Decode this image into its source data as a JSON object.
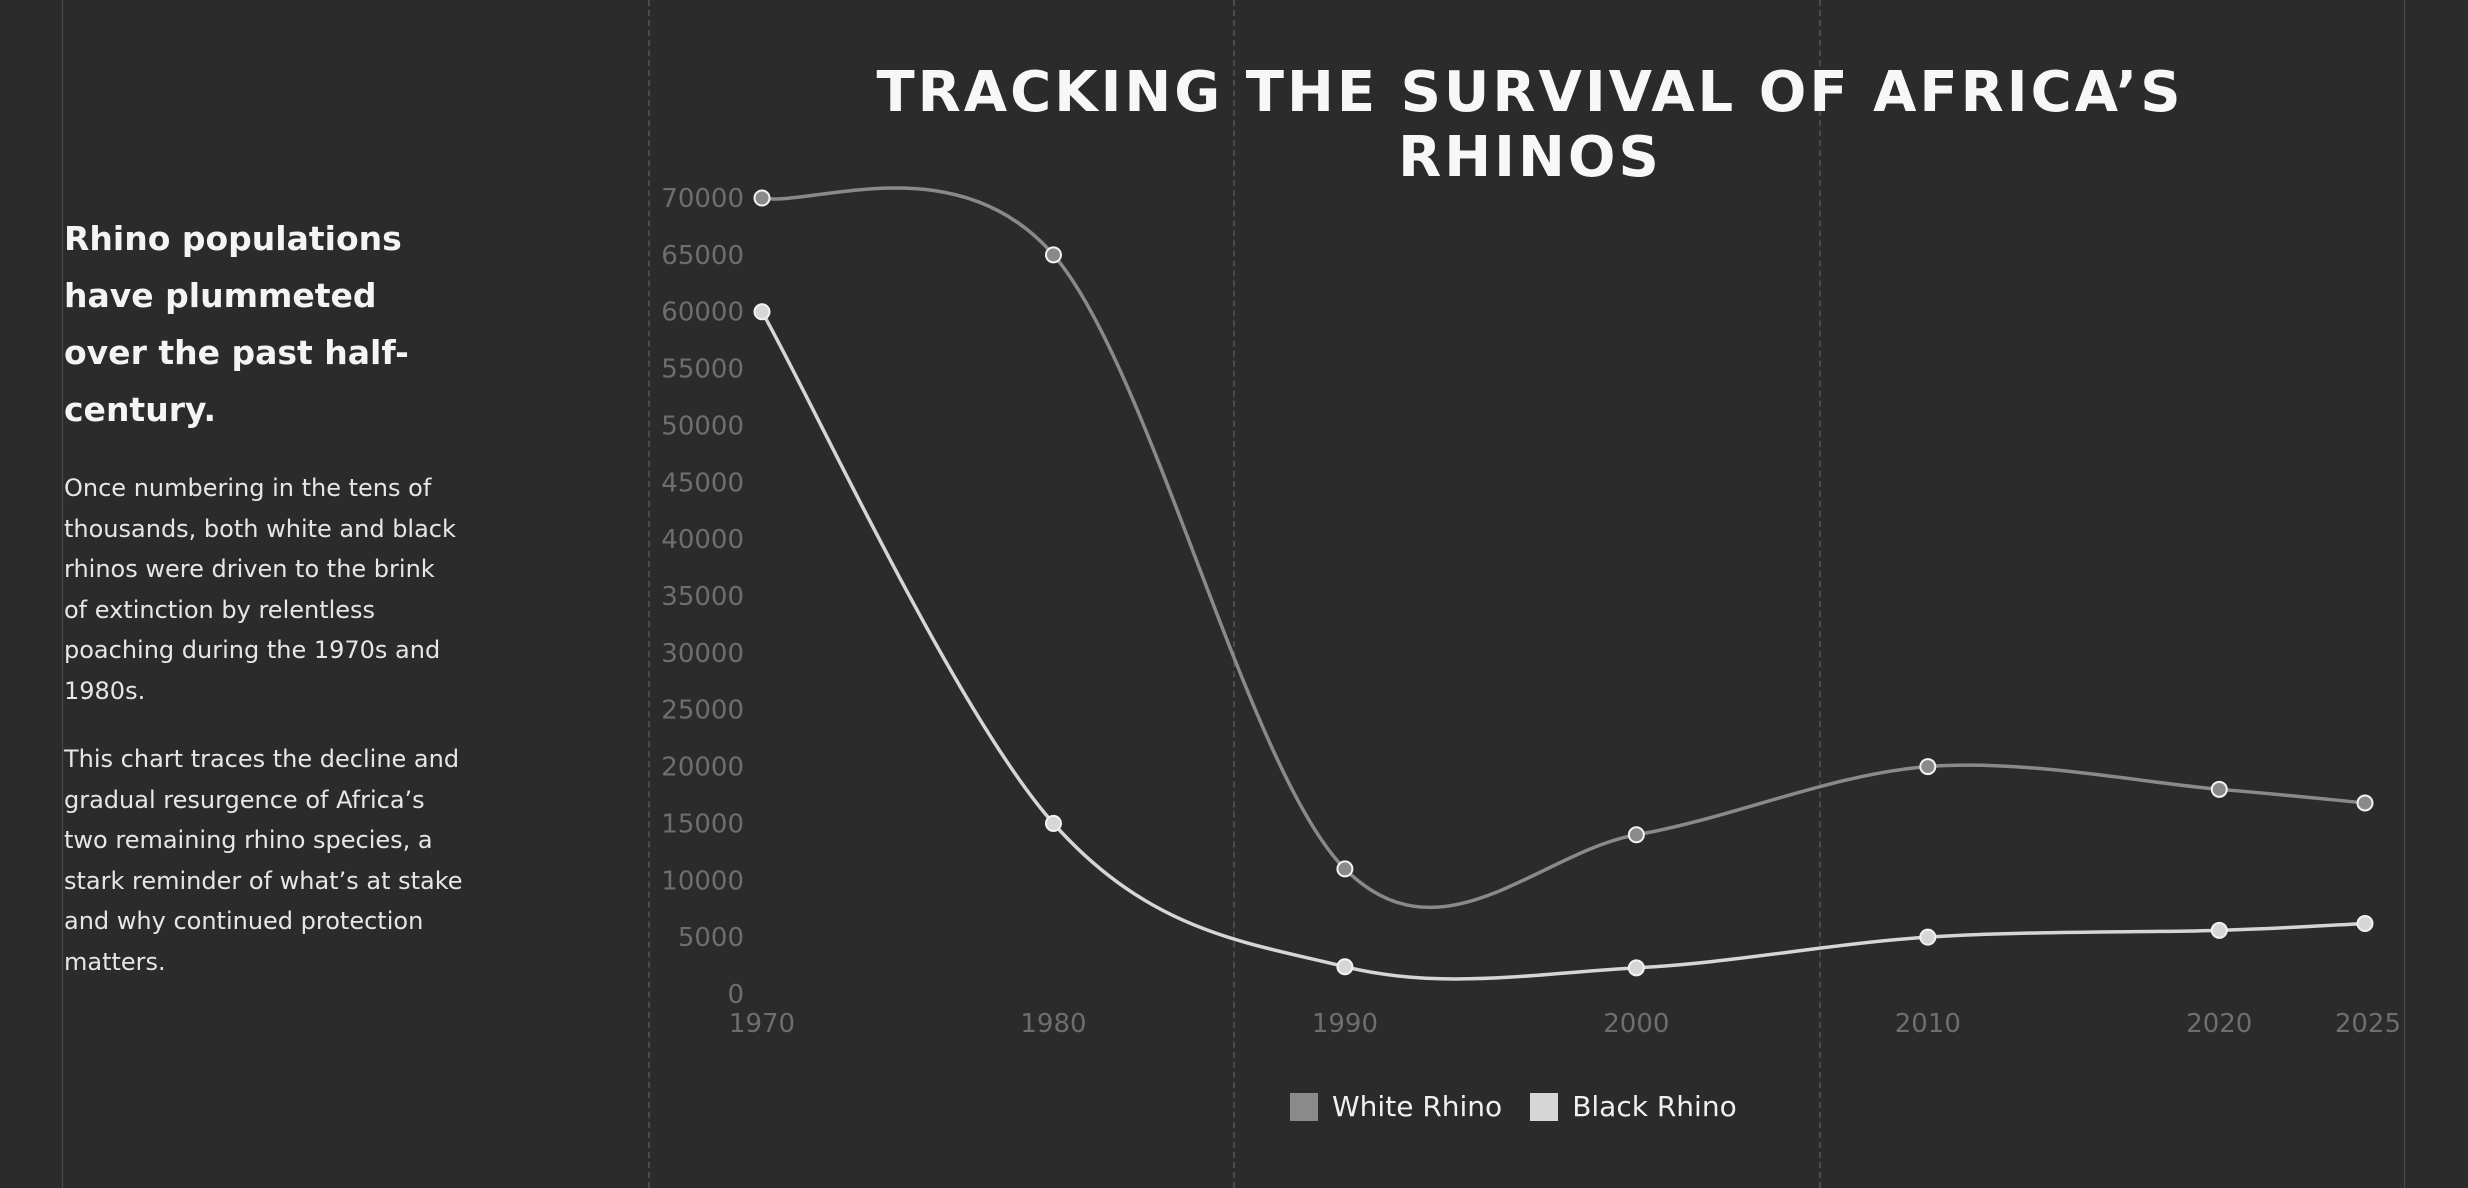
{
  "sidebar": {
    "heading": "Rhino populations have plummeted over the past half-century.",
    "paragraph1": "Once numbering in the tens of thousands, both white and black rhinos were driven to the brink of extinction by relentless poaching during the 1970s and 1980s.",
    "paragraph2": "This chart traces the decline and gradual resurgence of Africa’s two remaining rhino species, a stark reminder of what’s at stake and why continued protection matters."
  },
  "colors": {
    "background": "#2b2b2b",
    "white_rhino": "#8a8a8a",
    "black_rhino": "#d6d6d6",
    "axis_text": "#6e6e6e",
    "title": "#f7f7f7"
  },
  "chart_data": {
    "type": "line",
    "title": "TRACKING THE SURVIVAL OF AFRICA’S RHINOS",
    "xlabel": "",
    "ylabel": "",
    "x": [
      1970,
      1980,
      1990,
      2000,
      2010,
      2020,
      2025
    ],
    "x_ticks": [
      "1970",
      "1980",
      "1990",
      "2000",
      "2010",
      "2020",
      "2025"
    ],
    "ylim": [
      0,
      70000
    ],
    "y_ticks": [
      "0",
      "5000",
      "10000",
      "15000",
      "20000",
      "25000",
      "30000",
      "35000",
      "40000",
      "45000",
      "50000",
      "55000",
      "60000",
      "65000",
      "70000"
    ],
    "grid": false,
    "legend_position": "bottom-center",
    "series": [
      {
        "name": "White Rhino",
        "values": [
          70000,
          65000,
          11000,
          14000,
          20000,
          18000,
          16800
        ]
      },
      {
        "name": "Black Rhino",
        "values": [
          60000,
          15000,
          2400,
          2300,
          5000,
          5600,
          6200
        ]
      }
    ]
  }
}
